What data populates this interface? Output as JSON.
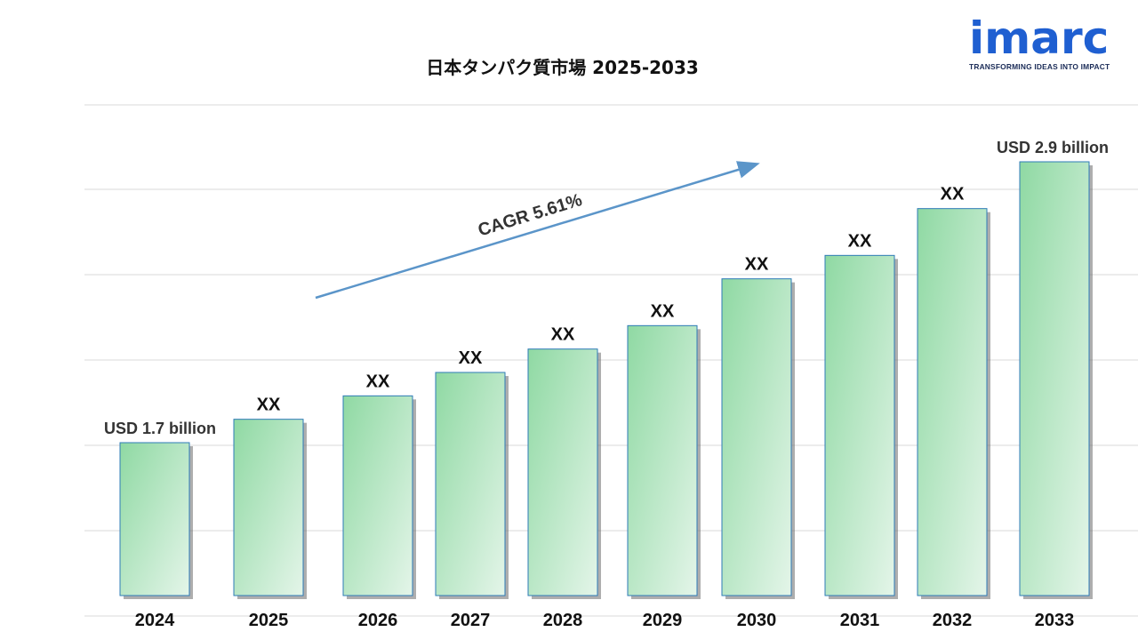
{
  "title": "日本タンパク質市場 2025-2033",
  "logo": {
    "word": "imarc",
    "tagline": "TRANSFORMING IDEAS INTO IMPACT"
  },
  "colors": {
    "bar_light": "#dff3e4",
    "bar_dark": "#8fd9a3",
    "bar_border": "#2e7bb7",
    "arrow": "#5b95c9",
    "grid": "#d9d9d9"
  },
  "chart_data": {
    "type": "bar",
    "title": "日本タンパク質市場 2025-2033",
    "xlabel": "",
    "ylabel": "",
    "categories": [
      "2024",
      "2025",
      "2026",
      "2027",
      "2028",
      "2029",
      "2030",
      "2031",
      "2032",
      "2033"
    ],
    "values": [
      1.7,
      1.8,
      1.9,
      2.0,
      2.1,
      2.2,
      2.4,
      2.5,
      2.7,
      2.9
    ],
    "value_unit": "USD billion",
    "data_labels": [
      "USD 1.7 billion",
      "XX",
      "XX",
      "XX",
      "XX",
      "XX",
      "XX",
      "XX",
      "XX",
      "USD 2.9 billion"
    ],
    "annotation": "CAGR 5.61%",
    "grid": true,
    "y_axis_labels_shown": false
  }
}
